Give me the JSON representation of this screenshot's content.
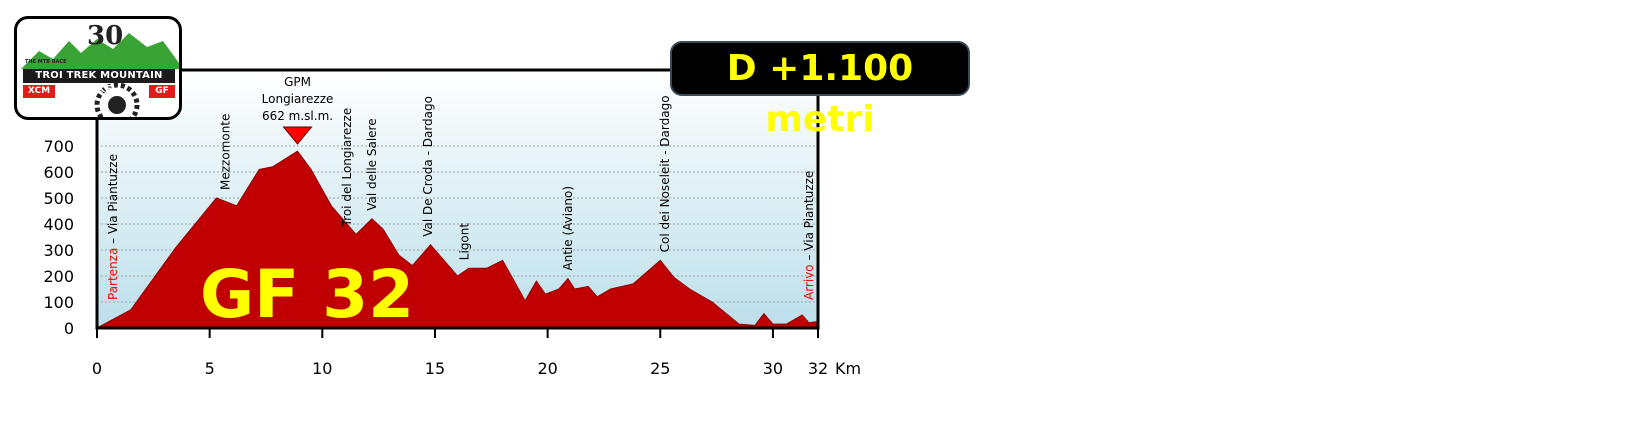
{
  "badge": {
    "elevation_gain": "D +1.100 metri"
  },
  "logo": {
    "number": "30",
    "small_text": "THE MTB RACE",
    "band": "TROI TREK MOUNTAIN BIKE",
    "tag_left": "XCM",
    "tag_right": "GF"
  },
  "chart_data": {
    "type": "area",
    "label": "GF 32",
    "xlim": [
      0,
      32
    ],
    "ylim": [
      0,
      700
    ],
    "x_ticks": [
      0,
      5,
      10,
      15,
      20,
      25,
      30,
      32
    ],
    "y_ticks": [
      0,
      100,
      200,
      300,
      400,
      500,
      600,
      700
    ],
    "x_unit": "Km",
    "gridlines": "horizontal",
    "colors": {
      "fill": "#c00000",
      "sky_top": "#ffffff",
      "sky_bottom": "#bcdfeb",
      "marker": "#ff0000"
    },
    "profile": {
      "x": [
        0,
        1.5,
        3.5,
        5.3,
        6.2,
        7.2,
        7.8,
        8.9,
        9.5,
        10.4,
        11.5,
        12.2,
        12.7,
        13.4,
        14,
        14.8,
        16,
        16.5,
        17.3,
        18,
        19,
        19.5,
        19.9,
        20.5,
        20.9,
        21.2,
        21.8,
        22.2,
        22.8,
        23.8,
        25,
        25.6,
        26.3,
        27.3,
        28.5,
        29.2,
        29.6,
        30,
        30.6,
        31.3,
        31.6,
        32
      ],
      "y": [
        0,
        70,
        310,
        500,
        470,
        610,
        620,
        680,
        610,
        470,
        360,
        420,
        380,
        280,
        240,
        320,
        200,
        230,
        230,
        260,
        105,
        180,
        130,
        150,
        190,
        150,
        160,
        120,
        150,
        170,
        260,
        195,
        150,
        100,
        15,
        10,
        55,
        15,
        15,
        50,
        20,
        25
      ]
    },
    "summit": {
      "x": 8.9,
      "label_lines": [
        "GPM",
        "Longiarezze",
        "662 m.sl.m."
      ]
    },
    "waypoints": [
      {
        "x": 0.7,
        "label": "Via Piantuzze",
        "prefix": "Partenza",
        "sep": " – "
      },
      {
        "x": 5.7,
        "label": "Mezzomonte"
      },
      {
        "x": 11.1,
        "label": "Troi del Longiarezze"
      },
      {
        "x": 12.2,
        "label": "Val delle Salere"
      },
      {
        "x": 14.7,
        "label": "Val De Croda - Dardago"
      },
      {
        "x": 16.3,
        "label": "Ligont"
      },
      {
        "x": 20.9,
        "label": "Antie (Aviano)"
      },
      {
        "x": 25.2,
        "label": "Col dei Noseleit - Dardago"
      },
      {
        "x": 31.6,
        "label": "Via Piantuzze",
        "prefix": "Arrivo",
        "sep": " – "
      }
    ]
  }
}
